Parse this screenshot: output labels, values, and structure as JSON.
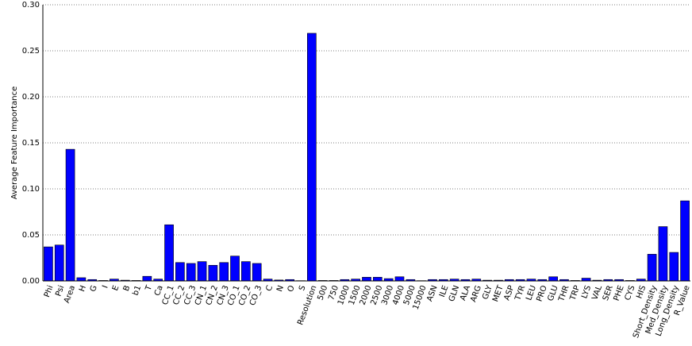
{
  "chart_data": {
    "type": "bar",
    "y_label": "Average Feature Importance",
    "categories": [
      "Phi",
      "Psi",
      "Area",
      "H",
      "G",
      "I",
      "E",
      "B",
      "b1",
      "T",
      "Ca",
      "CC_1",
      "CC_2",
      "CC_3",
      "CN_1",
      "CN_2",
      "CN_3",
      "CO_1",
      "CO_2",
      "CO_3",
      "C",
      "N",
      "O",
      "S",
      "Resolution",
      "500",
      "750",
      "1000",
      "1500",
      "2000",
      "2500",
      "3000",
      "4000",
      "5000",
      "15000",
      "ASN",
      "ILE",
      "GLN",
      "ALA",
      "ARG",
      "GLY",
      "MET",
      "ASP",
      "TYR",
      "LEU",
      "PRO",
      "GLU",
      "THR",
      "TRP",
      "LYS",
      "VAL",
      "SER",
      "PHE",
      "CYS",
      "HIS",
      "Short_Density",
      "Med_Density",
      "Long_Density",
      "R_Value"
    ],
    "values": [
      0.037,
      0.039,
      0.143,
      0.0035,
      0.0015,
      0.0005,
      0.002,
      0.0008,
      0.0005,
      0.005,
      0.002,
      0.061,
      0.02,
      0.019,
      0.021,
      0.017,
      0.02,
      0.027,
      0.021,
      0.019,
      0.002,
      0.001,
      0.0015,
      0.0003,
      0.269,
      0.0005,
      0.0005,
      0.0015,
      0.002,
      0.004,
      0.004,
      0.0025,
      0.0045,
      0.0015,
      0.0003,
      0.0015,
      0.0015,
      0.002,
      0.0015,
      0.002,
      0.0008,
      0.0008,
      0.0015,
      0.0015,
      0.002,
      0.0015,
      0.0045,
      0.0015,
      0.0005,
      0.003,
      0.0008,
      0.0015,
      0.0015,
      0.0005,
      0.002,
      0.029,
      0.059,
      0.031,
      0.087
    ],
    "color": "#0000ff",
    "ylim": [
      0,
      0.3
    ],
    "yticks": [
      {
        "value": 0,
        "label": "0.00"
      },
      {
        "value": 0.05,
        "label": "0.05"
      },
      {
        "value": 0.1,
        "label": "0.10"
      },
      {
        "value": 0.15,
        "label": "0.15"
      },
      {
        "value": 0.2,
        "label": "0.20"
      },
      {
        "value": 0.25,
        "label": "0.25"
      },
      {
        "value": 0.3,
        "label": "0.30"
      }
    ],
    "grid": true
  }
}
